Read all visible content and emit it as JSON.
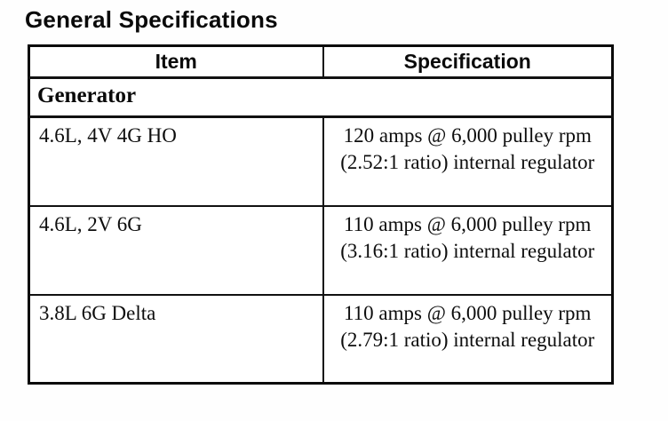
{
  "page": {
    "title": "General Specifications"
  },
  "table": {
    "headers": {
      "item": "Item",
      "specification": "Specification"
    },
    "section": "Generator",
    "rows": [
      {
        "item": "4.6L, 4V 4G HO",
        "specification": "120 amps @ 6,000 pulley rpm (2.52:1 ratio) internal regulator"
      },
      {
        "item": "4.6L, 2V 6G",
        "specification": "110 amps @ 6,000 pulley rpm (3.16:1 ratio) internal regulator"
      },
      {
        "item": "3.8L 6G Delta",
        "specification": "110 amps @ 6,000 pulley rpm (2.79:1 ratio) internal regulator"
      }
    ]
  },
  "colors": {
    "ink": "#0d0d0d",
    "paper": "#ffffff",
    "border": "#111111"
  }
}
